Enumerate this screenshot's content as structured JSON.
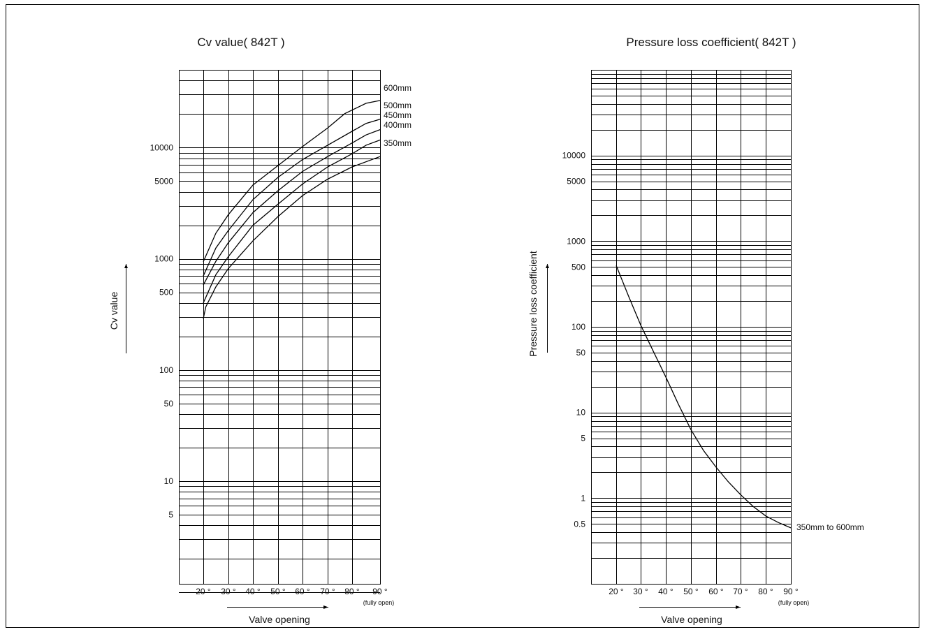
{
  "chart_data": [
    {
      "type": "line",
      "title": "Cv value( 842T )",
      "xlabel": "Valve opening",
      "ylabel": "Cv value",
      "x_ticks": [
        "20 °",
        "30 °",
        "40 °",
        "50 °",
        "60 °",
        "70 °",
        "80 °",
        "90 °"
      ],
      "x_note": "(fully open)",
      "y_ticks": [
        "10000",
        "5000",
        "1000",
        "500",
        "100",
        "50",
        "10",
        "5"
      ],
      "yscale": "log",
      "xlim": [
        10,
        90
      ],
      "ylim": [
        1,
        50000
      ],
      "series": [
        {
          "name": "600mm",
          "x": [
            20,
            25,
            30,
            40,
            50,
            60,
            70,
            77,
            85,
            90
          ],
          "values": [
            940,
            1700,
            2500,
            4600,
            6900,
            10200,
            15000,
            20200,
            25000,
            26500
          ]
        },
        {
          "name": "500mm",
          "x": [
            20,
            25,
            30,
            40,
            50,
            60,
            70,
            80,
            85,
            90
          ],
          "values": [
            700,
            1250,
            1800,
            3400,
            5400,
            7800,
            10500,
            14000,
            16500,
            18000
          ]
        },
        {
          "name": "450mm",
          "x": [
            20,
            25,
            30,
            40,
            50,
            60,
            70,
            80,
            85,
            90
          ],
          "values": [
            580,
            950,
            1400,
            2600,
            4100,
            6100,
            8300,
            11000,
            13000,
            14500
          ]
        },
        {
          "name": "400mm",
          "x": [
            20,
            25,
            30,
            40,
            50,
            60,
            70,
            80,
            85,
            90
          ],
          "values": [
            400,
            720,
            1050,
            2000,
            3100,
            4700,
            6700,
            8800,
            10500,
            11700
          ]
        },
        {
          "name": "350mm",
          "x": [
            20,
            21,
            25,
            30,
            40,
            50,
            60,
            70,
            80,
            90
          ],
          "values": [
            290,
            370,
            560,
            820,
            1450,
            2400,
            3700,
            5200,
            6700,
            8300
          ]
        }
      ]
    },
    {
      "type": "line",
      "title": "Pressure loss coefficient( 842T )",
      "xlabel": "Valve opening",
      "ylabel": "Pressure loss coefficient",
      "x_ticks": [
        "20 °",
        "30 °",
        "40 °",
        "50 °",
        "60 °",
        "70 °",
        "80 °",
        "90 °"
      ],
      "x_note": "(fully open)",
      "y_ticks": [
        "10000",
        "5000",
        "1000",
        "500",
        "100",
        "50",
        "10",
        "5",
        "1",
        "0.5"
      ],
      "yscale": "log",
      "xlim": [
        10,
        90
      ],
      "ylim": [
        0.1,
        100000
      ],
      "series": [
        {
          "name": "350mm to 600mm",
          "x": [
            20,
            25,
            30,
            35,
            40,
            45,
            50,
            55,
            60,
            65,
            70,
            75,
            80,
            85,
            90
          ],
          "values": [
            520,
            230,
            105,
            52,
            26,
            12.5,
            6.3,
            3.6,
            2.3,
            1.55,
            1.1,
            0.8,
            0.62,
            0.52,
            0.45
          ]
        }
      ]
    }
  ]
}
